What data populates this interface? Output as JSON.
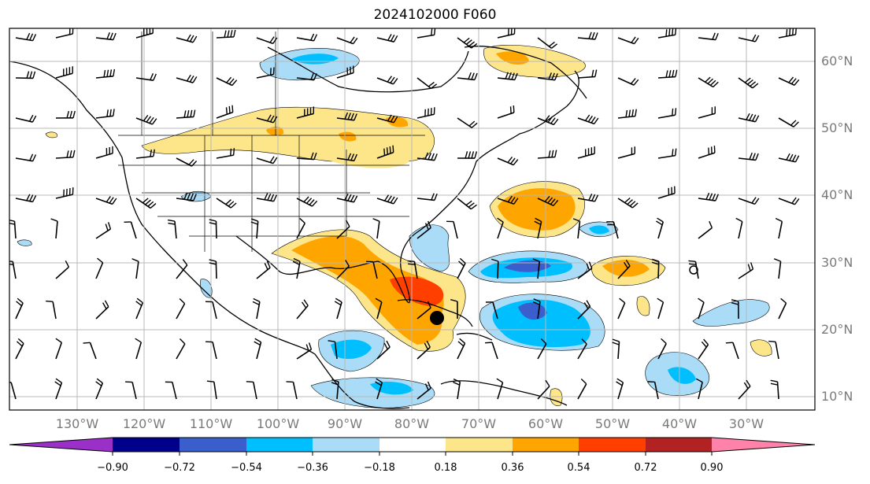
{
  "title": "2024102000 F060",
  "lat_labels": [
    "60°N",
    "50°N",
    "40°N",
    "30°N",
    "20°N",
    "10°N"
  ],
  "lon_labels": [
    "130°W",
    "120°W",
    "110°W",
    "100°W",
    "90°W",
    "80°W",
    "70°W",
    "60°W",
    "50°W",
    "40°W",
    "30°W"
  ],
  "colorbar": {
    "ticks": [
      "−0.90",
      "−0.72",
      "−0.54",
      "−0.36",
      "−0.18",
      "0.18",
      "0.36",
      "0.54",
      "0.72",
      "0.90"
    ],
    "colors": [
      "#9a30c8",
      "#00008b",
      "#3a5fcd",
      "#00bfff",
      "#aadcf8",
      "#ffffff",
      "#fde68a",
      "#ffa500",
      "#ff3f00",
      "#b22222",
      "#ff82ab"
    ]
  },
  "colors": {
    "light_blue": "#aadcf8",
    "mid_blue": "#00bfff",
    "dark_blue": "#3a5fcd",
    "yellow": "#fde68a",
    "orange": "#ffa500",
    "red": "#ff3f00",
    "grid": "#b8b8b8"
  },
  "features": {
    "storm_marker": "black-dot",
    "overlay": "wind-barbs"
  }
}
